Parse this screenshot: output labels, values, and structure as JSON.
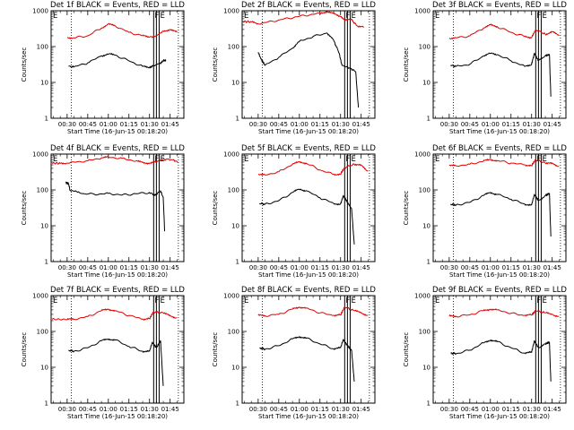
{
  "chart_data": {
    "type": "line",
    "layout": "3x3 grid of panels",
    "yscale": "log",
    "ylim": [
      1,
      1000
    ],
    "ylabel": "Counts/sec",
    "xlabel": "Start Time (16-Jun-15 00:18:20)",
    "x_ticks": [
      "00:30",
      "00:45",
      "01:00",
      "01:15",
      "01:30",
      "01:45"
    ],
    "y_ticks": [
      "1",
      "10",
      "100",
      "1000"
    ],
    "x_range": [
      "00:18:20",
      "01:55:00"
    ],
    "dotted_vertical_lines": [
      "00:33",
      "01:51"
    ],
    "solid_vertical_lines": [
      "01:33",
      "01:35",
      "01:37"
    ],
    "markers": [
      {
        "label": "E",
        "at": "00:19"
      },
      {
        "label": "F",
        "at": "01:33"
      },
      {
        "label": "E",
        "at": "01:37"
      }
    ],
    "series_colors": {
      "events": "#000000",
      "lld": "#e00000"
    },
    "panels": [
      {
        "title": "Det 1f BLACK = Events, RED = LLD",
        "series": [
          {
            "color": "#e00000",
            "x": [
              "00:30",
              "00:35",
              "00:45",
              "00:55",
              "01:00",
              "01:05",
              "01:15",
              "01:25",
              "01:30",
              "01:34",
              "01:40",
              "01:45",
              "01:50"
            ],
            "y": [
              180,
              175,
              200,
              330,
              420,
              380,
              250,
              200,
              185,
              190,
              270,
              300,
              250
            ]
          },
          {
            "color": "#000000",
            "x": [
              "00:31",
              "00:35",
              "00:45",
              "00:55",
              "01:00",
              "01:05",
              "01:15",
              "01:25",
              "01:30",
              "01:32",
              "01:38",
              "01:40",
              "01:42"
            ],
            "y": [
              28,
              27,
              35,
              55,
              62,
              58,
              40,
              28,
              26,
              28,
              35,
              40,
              42
            ]
          }
        ]
      },
      {
        "title": "Det 2f BLACK = Events, RED = LLD",
        "series": [
          {
            "color": "#e00000",
            "x": [
              "00:19",
              "00:25",
              "00:30",
              "00:45",
              "01:00",
              "01:15",
              "01:20",
              "01:25",
              "01:30",
              "01:33",
              "01:38",
              "01:42",
              "01:47"
            ],
            "y": [
              500,
              490,
              430,
              550,
              700,
              850,
              950,
              820,
              700,
              550,
              560,
              380,
              350
            ]
          },
          {
            "color": "#000000",
            "x": [
              "00:30",
              "00:32",
              "00:35",
              "00:45",
              "00:55",
              "01:00",
              "01:10",
              "01:20",
              "01:25",
              "01:29",
              "01:31",
              "01:37",
              "01:41",
              "01:43"
            ],
            "y": [
              70,
              45,
              30,
              50,
              90,
              140,
              190,
              240,
              150,
              65,
              30,
              25,
              20,
              2
            ]
          }
        ]
      },
      {
        "title": "Det 3f BLACK = Events, RED = LLD",
        "series": [
          {
            "color": "#e00000",
            "x": [
              "00:30",
              "00:35",
              "00:45",
              "00:55",
              "01:00",
              "01:05",
              "01:15",
              "01:25",
              "01:30",
              "01:33",
              "01:40",
              "01:45",
              "01:50"
            ],
            "y": [
              170,
              175,
              200,
              330,
              400,
              360,
              250,
              190,
              180,
              300,
              220,
              260,
              200
            ]
          },
          {
            "color": "#000000",
            "x": [
              "00:31",
              "00:35",
              "00:45",
              "00:55",
              "01:00",
              "01:05",
              "01:15",
              "01:25",
              "01:30",
              "01:32",
              "01:35",
              "01:40",
              "01:43",
              "01:44"
            ],
            "y": [
              30,
              28,
              32,
              55,
              65,
              60,
              40,
              28,
              32,
              65,
              40,
              55,
              60,
              4
            ]
          }
        ]
      },
      {
        "title": "Det 4f BLACK = Events, RED = LLD",
        "series": [
          {
            "color": "#e00000",
            "x": [
              "00:19",
              "00:25",
              "00:30",
              "00:45",
              "00:55",
              "01:00",
              "01:10",
              "01:20",
              "01:25",
              "01:30",
              "01:35",
              "01:40",
              "01:47",
              "01:51"
            ],
            "y": [
              560,
              550,
              560,
              650,
              780,
              820,
              760,
              640,
              580,
              560,
              600,
              720,
              700,
              580
            ]
          },
          {
            "color": "#000000",
            "x": [
              "00:29",
              "00:30",
              "00:31",
              "00:32",
              "00:40",
              "00:50",
              "01:00",
              "01:10",
              "01:20",
              "01:30",
              "01:34",
              "01:38",
              "01:40",
              "01:41"
            ],
            "y": [
              160,
              155,
              150,
              100,
              80,
              75,
              80,
              72,
              78,
              85,
              70,
              95,
              60,
              7
            ]
          }
        ]
      },
      {
        "title": "Det 5f BLACK = Events, RED = LLD",
        "series": [
          {
            "color": "#e00000",
            "x": [
              "00:30",
              "00:35",
              "00:45",
              "00:55",
              "01:00",
              "01:05",
              "01:15",
              "01:25",
              "01:30",
              "01:33",
              "01:40",
              "01:45",
              "01:50"
            ],
            "y": [
              270,
              260,
              320,
              520,
              600,
              560,
              360,
              270,
              280,
              420,
              520,
              480,
              330
            ]
          },
          {
            "color": "#000000",
            "x": [
              "00:31",
              "00:35",
              "00:45",
              "00:55",
              "01:00",
              "01:05",
              "01:15",
              "01:25",
              "01:30",
              "01:32",
              "01:35",
              "01:38",
              "01:40"
            ],
            "y": [
              42,
              40,
              50,
              85,
              105,
              95,
              60,
              42,
              40,
              70,
              45,
              30,
              3
            ]
          }
        ]
      },
      {
        "title": "Det 6f BLACK = Events, RED = LLD",
        "series": [
          {
            "color": "#e00000",
            "x": [
              "00:30",
              "00:35",
              "00:45",
              "00:55",
              "01:00",
              "01:05",
              "01:15",
              "01:25",
              "01:30",
              "01:33",
              "01:40",
              "01:45",
              "01:50"
            ],
            "y": [
              480,
              470,
              520,
              640,
              700,
              660,
              560,
              500,
              480,
              700,
              560,
              540,
              450
            ]
          },
          {
            "color": "#000000",
            "x": [
              "00:31",
              "00:35",
              "00:45",
              "00:55",
              "01:00",
              "01:05",
              "01:15",
              "01:25",
              "01:30",
              "01:32",
              "01:35",
              "01:40",
              "01:43",
              "01:44"
            ],
            "y": [
              40,
              38,
              45,
              70,
              85,
              75,
              55,
              40,
              38,
              75,
              50,
              70,
              80,
              5
            ]
          }
        ]
      },
      {
        "title": "Det 7f BLACK = Events, RED = LLD",
        "series": [
          {
            "color": "#e00000",
            "x": [
              "00:19",
              "00:30",
              "00:35",
              "00:45",
              "00:55",
              "01:00",
              "01:05",
              "01:15",
              "01:25",
              "01:30",
              "01:33",
              "01:40",
              "01:45",
              "01:50"
            ],
            "y": [
              220,
              215,
              220,
              260,
              380,
              420,
              380,
              280,
              220,
              230,
              350,
              330,
              270,
              240
            ]
          },
          {
            "color": "#000000",
            "x": [
              "00:31",
              "00:35",
              "00:45",
              "00:55",
              "01:00",
              "01:05",
              "01:15",
              "01:25",
              "01:30",
              "01:32",
              "01:35",
              "01:38",
              "01:40"
            ],
            "y": [
              30,
              28,
              35,
              55,
              62,
              58,
              38,
              28,
              28,
              50,
              35,
              55,
              3
            ]
          }
        ]
      },
      {
        "title": "Det 8f BLACK = Events, RED = LLD",
        "series": [
          {
            "color": "#e00000",
            "x": [
              "00:30",
              "00:35",
              "00:45",
              "00:55",
              "01:00",
              "01:05",
              "01:15",
              "01:25",
              "01:30",
              "01:33",
              "01:40",
              "01:45",
              "01:50"
            ],
            "y": [
              280,
              275,
              300,
              420,
              480,
              450,
              330,
              280,
              290,
              480,
              380,
              330,
              280
            ]
          },
          {
            "color": "#000000",
            "x": [
              "00:31",
              "00:35",
              "00:45",
              "00:55",
              "01:00",
              "01:05",
              "01:15",
              "01:25",
              "01:30",
              "01:32",
              "01:35",
              "01:38",
              "01:40"
            ],
            "y": [
              35,
              32,
              40,
              62,
              72,
              65,
              45,
              33,
              35,
              60,
              40,
              30,
              4
            ]
          }
        ]
      },
      {
        "title": "Det 9f BLACK = Events, RED = LLD",
        "series": [
          {
            "color": "#e00000",
            "x": [
              "00:30",
              "00:35",
              "00:45",
              "00:55",
              "01:00",
              "01:05",
              "01:15",
              "01:25",
              "01:30",
              "01:33",
              "01:40",
              "01:45",
              "01:50"
            ],
            "y": [
              270,
              265,
              290,
              380,
              420,
              400,
              320,
              280,
              290,
              380,
              330,
              300,
              260
            ]
          },
          {
            "color": "#000000",
            "x": [
              "00:31",
              "00:35",
              "00:45",
              "00:55",
              "01:00",
              "01:05",
              "01:15",
              "01:25",
              "01:30",
              "01:32",
              "01:35",
              "01:40",
              "01:43",
              "01:44"
            ],
            "y": [
              25,
              24,
              30,
              48,
              58,
              52,
              35,
              25,
              26,
              55,
              35,
              45,
              50,
              4
            ]
          }
        ]
      }
    ]
  }
}
